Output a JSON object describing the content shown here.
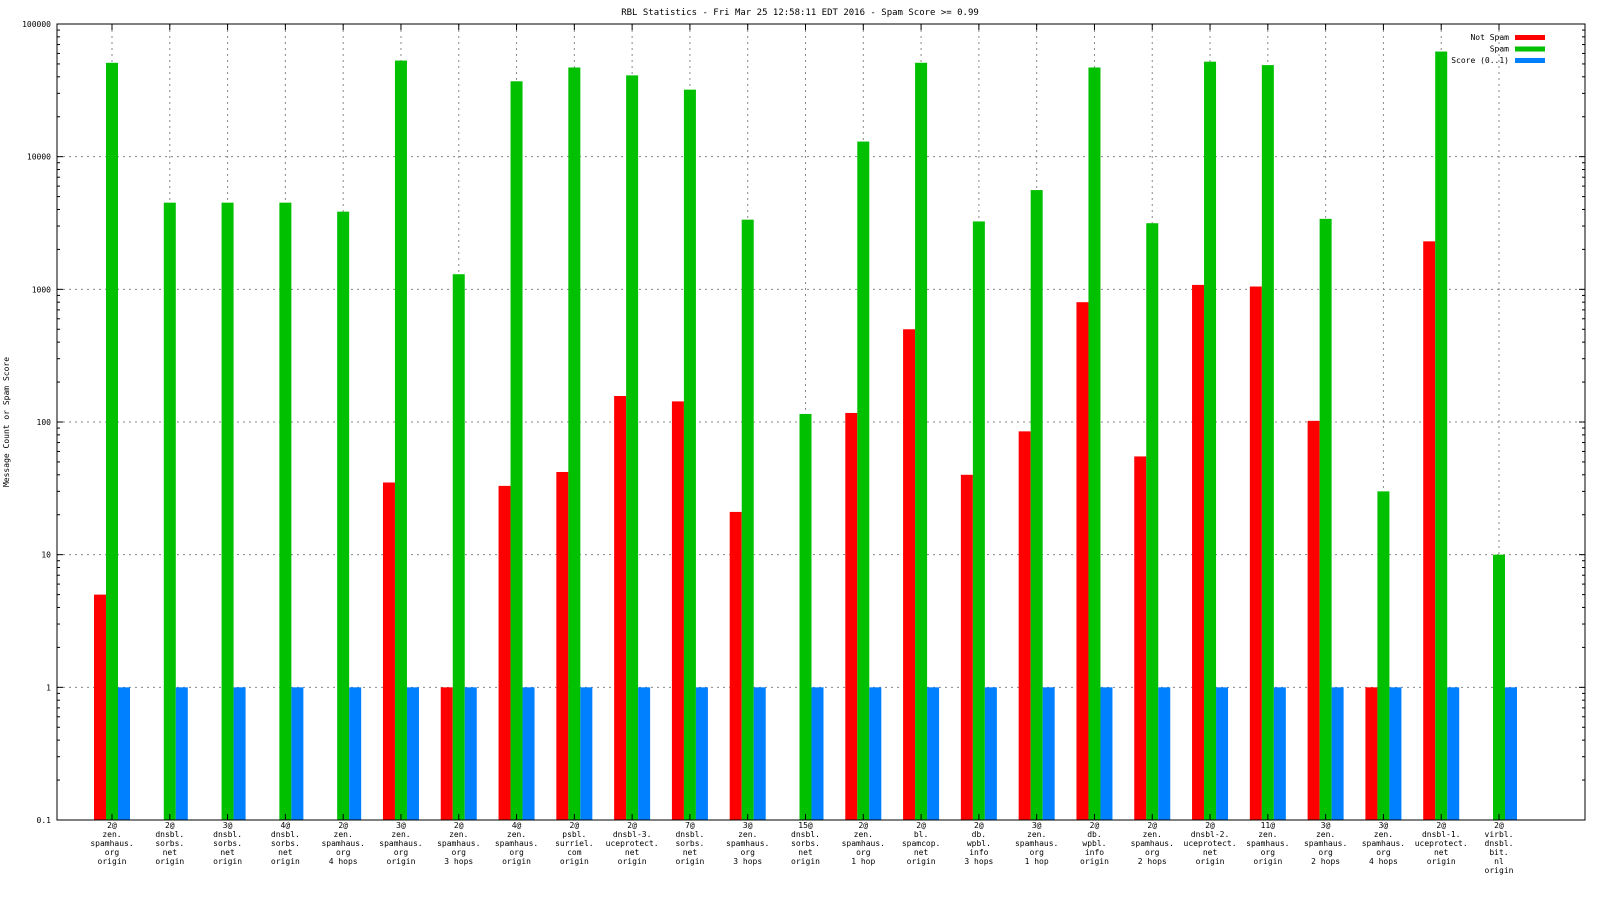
{
  "chart_data": {
    "type": "bar",
    "title": "RBL Statistics - Fri Mar 25 12:58:11 EDT 2016 - Spam Score >= 0.99",
    "xlabel": "",
    "ylabel": "Message Count or Spam Score",
    "yscale": "log",
    "ylim": [
      0.1,
      100000
    ],
    "yticks": [
      "0.1",
      "1",
      "10",
      "100",
      "1000",
      "10000",
      "100000"
    ],
    "grid": true,
    "legend_position": "top-right",
    "categories": [
      [
        "2@",
        "zen.",
        "spamhaus.",
        "org",
        "origin"
      ],
      [
        "2@",
        "dnsbl.",
        "sorbs.",
        "net",
        "origin"
      ],
      [
        "3@",
        "dnsbl.",
        "sorbs.",
        "net",
        "origin"
      ],
      [
        "4@",
        "dnsbl.",
        "sorbs.",
        "net",
        "origin"
      ],
      [
        "2@",
        "zen.",
        "spamhaus.",
        "org",
        "4 hops"
      ],
      [
        "3@",
        "zen.",
        "spamhaus.",
        "org",
        "origin"
      ],
      [
        "2@",
        "zen.",
        "spamhaus.",
        "org",
        "3 hops"
      ],
      [
        "4@",
        "zen.",
        "spamhaus.",
        "org",
        "origin"
      ],
      [
        "2@",
        "psbl.",
        "surriel.",
        "com",
        "origin"
      ],
      [
        "2@",
        "dnsbl-3.",
        "uceprotect.",
        "net",
        "origin"
      ],
      [
        "7@",
        "dnsbl.",
        "sorbs.",
        "net",
        "origin"
      ],
      [
        "3@",
        "zen.",
        "spamhaus.",
        "org",
        "3 hops"
      ],
      [
        "15@",
        "dnsbl.",
        "sorbs.",
        "net",
        "origin"
      ],
      [
        "2@",
        "zen.",
        "spamhaus.",
        "org",
        "1 hop"
      ],
      [
        "2@",
        "bl.",
        "spamcop.",
        "net",
        "origin"
      ],
      [
        "2@",
        "db.",
        "wpbl.",
        "info",
        "3 hops"
      ],
      [
        "3@",
        "zen.",
        "spamhaus.",
        "org",
        "1 hop"
      ],
      [
        "2@",
        "db.",
        "wpbl.",
        "info",
        "origin"
      ],
      [
        "2@",
        "zen.",
        "spamhaus.",
        "org",
        "2 hops"
      ],
      [
        "2@",
        "dnsbl-2.",
        "uceprotect.",
        "net",
        "origin"
      ],
      [
        "11@",
        "zen.",
        "spamhaus.",
        "org",
        "origin"
      ],
      [
        "3@",
        "zen.",
        "spamhaus.",
        "org",
        "2 hops"
      ],
      [
        "3@",
        "zen.",
        "spamhaus.",
        "org",
        "4 hops"
      ],
      [
        "2@",
        "dnsbl-1.",
        "uceprotect.",
        "net",
        "origin"
      ],
      [
        "2@",
        "virbl.",
        "dnsbl.",
        "bit.",
        "nl",
        "origin"
      ]
    ],
    "series": [
      {
        "name": "Not Spam",
        "color": "#ff0000",
        "values": [
          5,
          null,
          null,
          null,
          null,
          35,
          1,
          33,
          42,
          157,
          143,
          21,
          null,
          117,
          500,
          40,
          85,
          800,
          55,
          1080,
          1050,
          102,
          1,
          2300,
          null
        ]
      },
      {
        "name": "Spam",
        "color": "#00c000",
        "values": [
          51000,
          4500,
          4500,
          4500,
          3850,
          53000,
          1300,
          37000,
          47000,
          41000,
          32000,
          3350,
          115,
          13000,
          51000,
          3250,
          5600,
          47000,
          3150,
          52000,
          49000,
          3400,
          30,
          62000,
          10
        ]
      },
      {
        "name": "Score (0..1)",
        "color": "#0080ff",
        "values": [
          1,
          1,
          1,
          1,
          1,
          1,
          1,
          1,
          1,
          1,
          1,
          1,
          1,
          1,
          1,
          1,
          1,
          1,
          1,
          1,
          1,
          1,
          1,
          1,
          1
        ]
      }
    ]
  }
}
